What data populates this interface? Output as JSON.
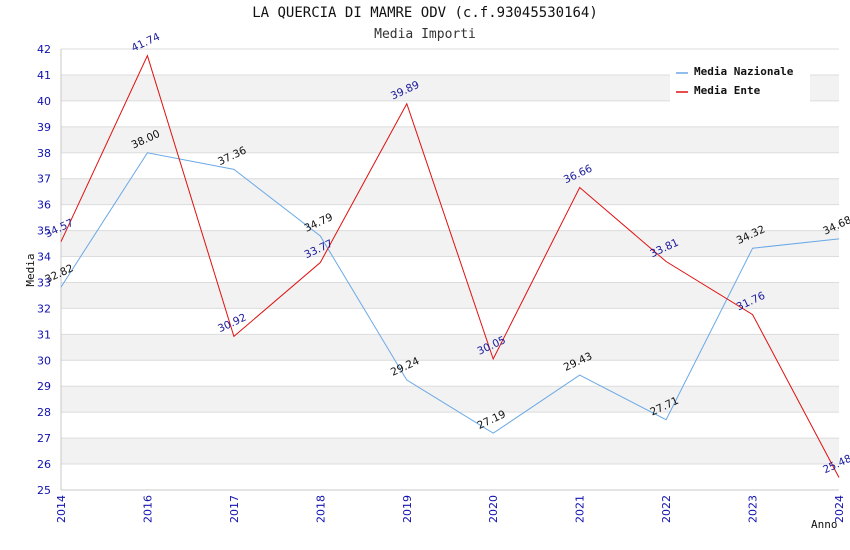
{
  "chart_data": {
    "type": "line",
    "title": "LA QUERCIA DI MAMRE ODV (c.f.93045530164)",
    "subtitle": "Media Importi",
    "xlabel": "Anno",
    "ylabel": "Media",
    "x": [
      "2014",
      "2016",
      "2017",
      "2018",
      "2019",
      "2020",
      "2021",
      "2022",
      "2023",
      "2024"
    ],
    "ylim": [
      25,
      42
    ],
    "yticks": [
      25,
      26,
      27,
      28,
      29,
      30,
      31,
      32,
      33,
      34,
      35,
      36,
      37,
      38,
      39,
      40,
      41,
      42
    ],
    "grid": true,
    "legend_position": "top-right",
    "series": [
      {
        "name": "Media Nazionale",
        "color": "#6aa9e6",
        "label_color": "#111111",
        "values": [
          32.82,
          38.0,
          37.36,
          34.79,
          29.24,
          27.19,
          29.43,
          27.71,
          34.32,
          34.68
        ],
        "labels": [
          "32.82",
          "38.00",
          "37.36",
          "34.79",
          "29.24",
          "27.19",
          "29.43",
          "27.71",
          "34.32",
          "34.68"
        ]
      },
      {
        "name": "Media Ente",
        "color": "#e01010",
        "label_color": "#1a1a9c",
        "values": [
          34.57,
          41.74,
          30.92,
          33.77,
          39.89,
          30.05,
          36.66,
          33.81,
          31.76,
          25.48
        ],
        "labels": [
          "34.57",
          "41.74",
          "30.92",
          "33.77",
          "39.89",
          "30.05",
          "36.66",
          "33.81",
          "31.76",
          "25.48"
        ]
      }
    ]
  }
}
